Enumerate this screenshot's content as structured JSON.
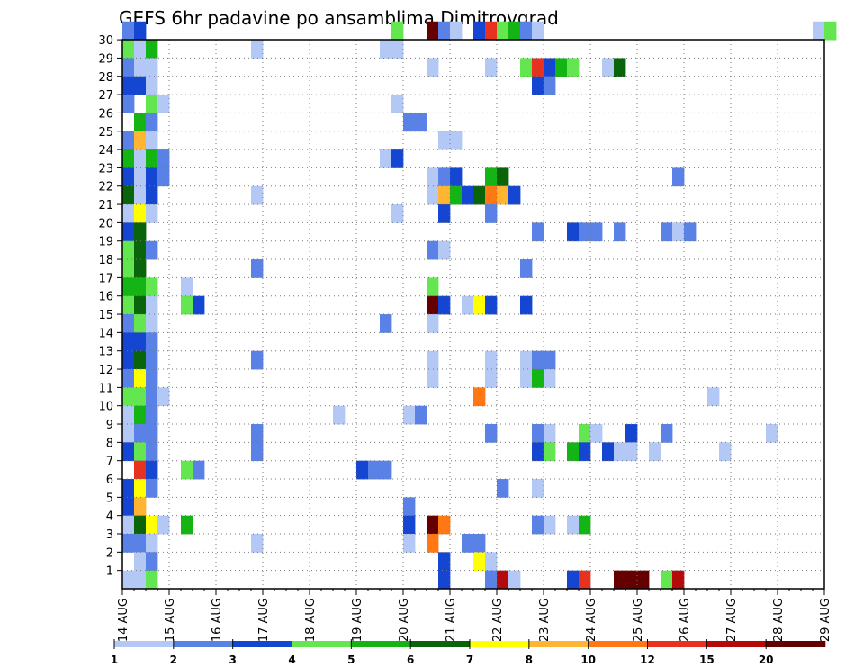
{
  "chart_data": {
    "type": "heatmap",
    "title": "GEFS 6hr padavine po ansamblima Dimitrovgrad",
    "xlabel": "",
    "ylabel": "",
    "y_ticks": [
      "1",
      "2",
      "3",
      "4",
      "5",
      "6",
      "7",
      "8",
      "9",
      "10",
      "11",
      "12",
      "13",
      "14",
      "15",
      "16",
      "17",
      "18",
      "19",
      "20",
      "21",
      "22",
      "23",
      "24",
      "25",
      "26",
      "27",
      "28",
      "29",
      "30"
    ],
    "x_ticks": [
      "14 AUG",
      "15 AUG",
      "16 AUG",
      "17 AUG",
      "18 AUG",
      "19 AUG",
      "20 AUG",
      "21 AUG",
      "22 AUG",
      "23 AUG",
      "24 AUG",
      "25 AUG",
      "26 AUG",
      "27 AUG",
      "28 AUG",
      "29 AUG"
    ],
    "time_steps_per_day": 4,
    "grid": "dotted",
    "colorbar": {
      "placement": "bottom",
      "labels": [
        "1",
        "2",
        "3",
        "4",
        "5",
        "6",
        "7",
        "8",
        "10",
        "12",
        "15",
        "20"
      ],
      "colors": [
        "#b4c8f5",
        "#5a82e6",
        "#1446d2",
        "#64e650",
        "#14b414",
        "#0a640a",
        "#ffff00",
        "#ffb432",
        "#ff7814",
        "#e6321e",
        "#b40a0a",
        "#640000"
      ]
    },
    "cells": [
      [
        30,
        0,
        1
      ],
      [
        30,
        1,
        2
      ],
      [
        30,
        23,
        3
      ],
      [
        30,
        26,
        11
      ],
      [
        30,
        27,
        1
      ],
      [
        30,
        28,
        0
      ],
      [
        30,
        30,
        2
      ],
      [
        30,
        31,
        9
      ],
      [
        30,
        32,
        3
      ],
      [
        30,
        33,
        4
      ],
      [
        30,
        34,
        1
      ],
      [
        30,
        35,
        0
      ],
      [
        30,
        59,
        0
      ],
      [
        30,
        60,
        3
      ],
      [
        29,
        0,
        3
      ],
      [
        29,
        1,
        0
      ],
      [
        29,
        2,
        4
      ],
      [
        29,
        11,
        0
      ],
      [
        29,
        22,
        0
      ],
      [
        29,
        23,
        0
      ],
      [
        28,
        0,
        1
      ],
      [
        28,
        1,
        0
      ],
      [
        28,
        2,
        0
      ],
      [
        28,
        26,
        0
      ],
      [
        28,
        31,
        0
      ],
      [
        28,
        34,
        3
      ],
      [
        28,
        35,
        9
      ],
      [
        28,
        36,
        2
      ],
      [
        28,
        37,
        4
      ],
      [
        28,
        38,
        3
      ],
      [
        28,
        41,
        0
      ],
      [
        28,
        42,
        5
      ],
      [
        27,
        0,
        2
      ],
      [
        27,
        1,
        2
      ],
      [
        27,
        2,
        0
      ],
      [
        27,
        35,
        2
      ],
      [
        27,
        36,
        1
      ],
      [
        26,
        0,
        1
      ],
      [
        26,
        2,
        3
      ],
      [
        26,
        3,
        0
      ],
      [
        26,
        23,
        0
      ],
      [
        25,
        1,
        4
      ],
      [
        25,
        2,
        1
      ],
      [
        25,
        24,
        1
      ],
      [
        25,
        25,
        1
      ],
      [
        24,
        0,
        1
      ],
      [
        24,
        1,
        7
      ],
      [
        24,
        2,
        0
      ],
      [
        24,
        27,
        0
      ],
      [
        24,
        28,
        0
      ],
      [
        23,
        0,
        4
      ],
      [
        23,
        1,
        0
      ],
      [
        23,
        2,
        4
      ],
      [
        23,
        3,
        1
      ],
      [
        23,
        22,
        0
      ],
      [
        23,
        23,
        2
      ],
      [
        22,
        0,
        2
      ],
      [
        22,
        1,
        0
      ],
      [
        22,
        2,
        2
      ],
      [
        22,
        3,
        1
      ],
      [
        22,
        26,
        0
      ],
      [
        22,
        27,
        1
      ],
      [
        22,
        28,
        2
      ],
      [
        22,
        31,
        4
      ],
      [
        22,
        32,
        5
      ],
      [
        22,
        47,
        1
      ],
      [
        21,
        0,
        5
      ],
      [
        21,
        1,
        0
      ],
      [
        21,
        2,
        2
      ],
      [
        21,
        11,
        0
      ],
      [
        21,
        26,
        0
      ],
      [
        21,
        27,
        7
      ],
      [
        21,
        28,
        4
      ],
      [
        21,
        29,
        2
      ],
      [
        21,
        30,
        5
      ],
      [
        21,
        31,
        8
      ],
      [
        21,
        32,
        7
      ],
      [
        21,
        33,
        2
      ],
      [
        20,
        0,
        0
      ],
      [
        20,
        1,
        6
      ],
      [
        20,
        2,
        0
      ],
      [
        20,
        23,
        0
      ],
      [
        20,
        27,
        2
      ],
      [
        20,
        31,
        1
      ],
      [
        19,
        0,
        2
      ],
      [
        19,
        1,
        5
      ],
      [
        19,
        35,
        1
      ],
      [
        19,
        38,
        2
      ],
      [
        19,
        39,
        1
      ],
      [
        19,
        40,
        1
      ],
      [
        19,
        42,
        1
      ],
      [
        19,
        46,
        1
      ],
      [
        19,
        47,
        0
      ],
      [
        19,
        48,
        1
      ],
      [
        18,
        0,
        3
      ],
      [
        18,
        1,
        5
      ],
      [
        18,
        2,
        1
      ],
      [
        18,
        26,
        1
      ],
      [
        18,
        27,
        0
      ],
      [
        17,
        0,
        3
      ],
      [
        17,
        1,
        5
      ],
      [
        17,
        11,
        1
      ],
      [
        17,
        34,
        1
      ],
      [
        16,
        0,
        4
      ],
      [
        16,
        1,
        4
      ],
      [
        16,
        2,
        3
      ],
      [
        16,
        5,
        0
      ],
      [
        16,
        26,
        3
      ],
      [
        15,
        0,
        3
      ],
      [
        15,
        1,
        5
      ],
      [
        15,
        2,
        0
      ],
      [
        15,
        5,
        3
      ],
      [
        15,
        6,
        2
      ],
      [
        15,
        26,
        11
      ],
      [
        15,
        27,
        2
      ],
      [
        15,
        29,
        0
      ],
      [
        15,
        30,
        6
      ],
      [
        15,
        31,
        2
      ],
      [
        15,
        34,
        2
      ],
      [
        14,
        0,
        1
      ],
      [
        14,
        1,
        3
      ],
      [
        14,
        2,
        0
      ],
      [
        14,
        22,
        1
      ],
      [
        14,
        26,
        0
      ],
      [
        13,
        0,
        2
      ],
      [
        13,
        1,
        2
      ],
      [
        13,
        2,
        1
      ],
      [
        12,
        0,
        2
      ],
      [
        12,
        1,
        5
      ],
      [
        12,
        2,
        1
      ],
      [
        12,
        11,
        1
      ],
      [
        12,
        26,
        0
      ],
      [
        12,
        31,
        0
      ],
      [
        12,
        34,
        0
      ],
      [
        12,
        35,
        1
      ],
      [
        12,
        36,
        1
      ],
      [
        11,
        0,
        1
      ],
      [
        11,
        1,
        6
      ],
      [
        11,
        2,
        1
      ],
      [
        11,
        26,
        0
      ],
      [
        11,
        31,
        0
      ],
      [
        11,
        34,
        0
      ],
      [
        11,
        35,
        4
      ],
      [
        11,
        36,
        0
      ],
      [
        10,
        0,
        3
      ],
      [
        10,
        1,
        3
      ],
      [
        10,
        2,
        1
      ],
      [
        10,
        3,
        0
      ],
      [
        10,
        30,
        8
      ],
      [
        10,
        50,
        0
      ],
      [
        9,
        0,
        0
      ],
      [
        9,
        1,
        4
      ],
      [
        9,
        2,
        1
      ],
      [
        9,
        18,
        0
      ],
      [
        9,
        24,
        0
      ],
      [
        9,
        25,
        1
      ],
      [
        8,
        0,
        0
      ],
      [
        8,
        1,
        1
      ],
      [
        8,
        2,
        1
      ],
      [
        8,
        11,
        1
      ],
      [
        8,
        31,
        1
      ],
      [
        8,
        35,
        1
      ],
      [
        8,
        36,
        0
      ],
      [
        8,
        39,
        3
      ],
      [
        8,
        40,
        0
      ],
      [
        8,
        43,
        2
      ],
      [
        8,
        46,
        1
      ],
      [
        8,
        55,
        0
      ],
      [
        7,
        0,
        2
      ],
      [
        7,
        1,
        3
      ],
      [
        7,
        2,
        1
      ],
      [
        7,
        11,
        1
      ],
      [
        7,
        35,
        2
      ],
      [
        7,
        36,
        3
      ],
      [
        7,
        38,
        4
      ],
      [
        7,
        39,
        2
      ],
      [
        7,
        41,
        2
      ],
      [
        7,
        42,
        0
      ],
      [
        7,
        43,
        0
      ],
      [
        7,
        45,
        0
      ],
      [
        7,
        51,
        0
      ],
      [
        6,
        1,
        9
      ],
      [
        6,
        2,
        2
      ],
      [
        6,
        5,
        3
      ],
      [
        6,
        6,
        1
      ],
      [
        6,
        20,
        2
      ],
      [
        6,
        21,
        1
      ],
      [
        6,
        22,
        1
      ],
      [
        5,
        0,
        2
      ],
      [
        5,
        1,
        6
      ],
      [
        5,
        2,
        1
      ],
      [
        5,
        32,
        1
      ],
      [
        5,
        35,
        0
      ],
      [
        4,
        0,
        2
      ],
      [
        4,
        1,
        7
      ],
      [
        4,
        24,
        1
      ],
      [
        3,
        0,
        0
      ],
      [
        3,
        1,
        5
      ],
      [
        3,
        2,
        6
      ],
      [
        3,
        3,
        0
      ],
      [
        3,
        5,
        4
      ],
      [
        3,
        24,
        2
      ],
      [
        3,
        26,
        11
      ],
      [
        3,
        27,
        8
      ],
      [
        3,
        35,
        1
      ],
      [
        3,
        36,
        0
      ],
      [
        3,
        38,
        0
      ],
      [
        3,
        39,
        4
      ],
      [
        2,
        0,
        1
      ],
      [
        2,
        1,
        1
      ],
      [
        2,
        2,
        0
      ],
      [
        2,
        11,
        0
      ],
      [
        2,
        24,
        0
      ],
      [
        2,
        26,
        8
      ],
      [
        2,
        29,
        1
      ],
      [
        2,
        30,
        1
      ],
      [
        1,
        1,
        0
      ],
      [
        1,
        2,
        1
      ],
      [
        1,
        27,
        2
      ],
      [
        1,
        30,
        6
      ],
      [
        1,
        31,
        0
      ],
      [
        0,
        0,
        0
      ],
      [
        0,
        1,
        0
      ],
      [
        0,
        2,
        3
      ],
      [
        0,
        27,
        2
      ],
      [
        0,
        31,
        1
      ],
      [
        0,
        32,
        10
      ],
      [
        0,
        33,
        0
      ],
      [
        0,
        38,
        2
      ],
      [
        0,
        39,
        9
      ],
      [
        0,
        42,
        11
      ],
      [
        0,
        43,
        11
      ],
      [
        0,
        44,
        11
      ],
      [
        0,
        46,
        3
      ],
      [
        0,
        47,
        10
      ]
    ]
  }
}
